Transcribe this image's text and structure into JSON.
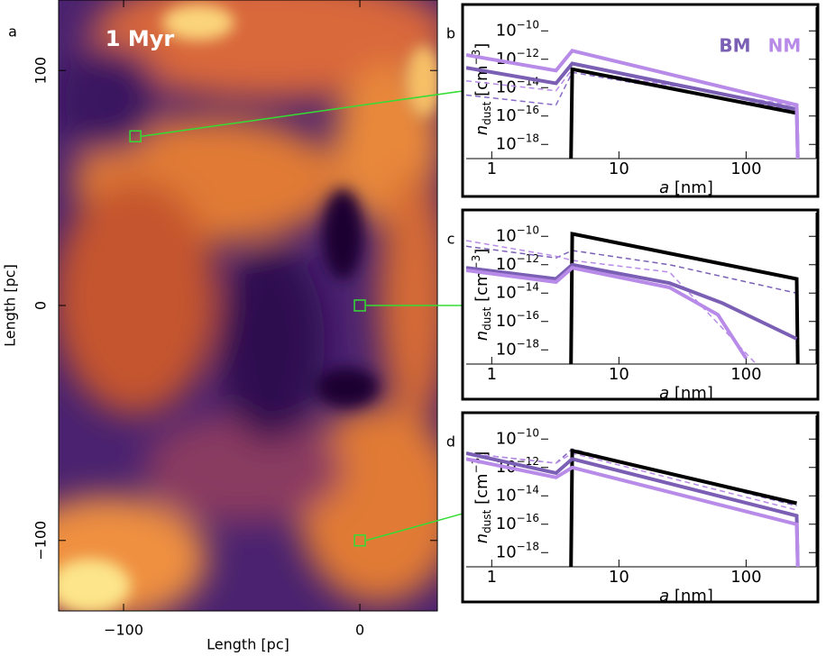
{
  "chart_data": [
    {
      "type": "image",
      "panel_label": "a",
      "annotation": "1 Myr",
      "xlabel": "Length [pc]",
      "ylabel": "Length [pc]",
      "xlim": [
        -127.5,
        32.8
      ],
      "ylim": [
        -130,
        130
      ],
      "xticks": [
        {
          "value": -100,
          "label": "−100"
        },
        0
      ],
      "yticks": [
        100,
        0,
        {
          "value": -100,
          "label": "−100"
        }
      ],
      "markers": {
        "x": [
          -95,
          0,
          0
        ],
        "y": [
          72,
          0,
          -100
        ],
        "color": "#33dd33"
      }
    },
    {
      "type": "line",
      "panel_label": "b",
      "xlabel": "a [nm]",
      "ylabel": "ndust [cm−3]",
      "log": true,
      "legend": "top-right",
      "xlim": [
        0.63,
        355
      ],
      "ylim": [
        1e-19,
        6e-10
      ],
      "xticks": [
        1,
        10,
        100
      ],
      "yticks": [
        {
          "value": 1e-10,
          "label": "10−10"
        },
        {
          "value": 1e-12,
          "label": "10−12"
        },
        {
          "value": 1e-14,
          "label": "10−14"
        },
        {
          "value": 1e-16,
          "label": "10−16"
        },
        {
          "value": 1e-18,
          "label": "10−18"
        }
      ],
      "series": [
        {
          "color": "#8a6cc8",
          "dash": true,
          "x": [
            0.63,
            3.2,
            4.3,
            250
          ],
          "values": [
            3e-15,
            6e-16,
            1.2e-13,
            2.5e-16
          ]
        },
        {
          "color": "#b88be8",
          "dash": true,
          "x": [
            0.63,
            3.2,
            4.3,
            250
          ],
          "values": [
            3e-14,
            6e-15,
            2e-13,
            5e-16
          ]
        },
        {
          "color": "#000000",
          "x": [
            4.2,
            4.3,
            250
          ],
          "values": [
            1e-19,
            2e-13,
            1.6e-16
          ]
        },
        {
          "name": "BM",
          "color": "#7a5fb5",
          "x": [
            0.63,
            3.2,
            4.3,
            250,
            255
          ],
          "values": [
            2.5e-13,
            2e-14,
            5e-13,
            3e-16,
            1e-19
          ]
        },
        {
          "name": "NM",
          "color": "#b88be8",
          "x": [
            0.63,
            3.2,
            4.3,
            250,
            255
          ],
          "values": [
            2e-12,
            1.6e-13,
            4e-12,
            6e-16,
            1e-19
          ]
        }
      ]
    },
    {
      "type": "line",
      "panel_label": "c",
      "xlabel": "a [nm]",
      "ylabel": "ndust [cm−3]",
      "log": true,
      "xlim": [
        0.63,
        355
      ],
      "ylim": [
        1e-19,
        6e-10
      ],
      "xticks": [
        1,
        10,
        100
      ],
      "yticks": [
        {
          "value": 1e-10,
          "label": "10−10"
        },
        {
          "value": 1e-12,
          "label": "10−12"
        },
        {
          "value": 1e-14,
          "label": "10−14"
        },
        {
          "value": 1e-16,
          "label": "10−16"
        },
        {
          "value": 1e-18,
          "label": "10−18"
        }
      ],
      "series": [
        {
          "color": "#7a5fb5",
          "dash": true,
          "x": [
            0.63,
            3.2,
            4.3,
            25,
            250
          ],
          "values": [
            2e-11,
            3e-12,
            1e-11,
            1e-12,
            1e-14
          ]
        },
        {
          "color": "#b88be8",
          "dash": true,
          "x": [
            0.63,
            3.2,
            4.3,
            25,
            120
          ],
          "values": [
            5e-11,
            4e-12,
            2e-12,
            3e-13,
            1e-19
          ]
        },
        {
          "color": "#000000",
          "x": [
            4.2,
            4.3,
            250,
            255
          ],
          "values": [
            1e-19,
            1.5e-10,
            1e-13,
            1e-19
          ]
        },
        {
          "color": "#7a5fb5",
          "x": [
            0.63,
            3.2,
            4.3,
            25,
            65,
            250
          ],
          "values": [
            6e-13,
            1e-13,
            1e-12,
            5e-14,
            2e-15,
            6e-18
          ]
        },
        {
          "color": "#b88be8",
          "x": [
            0.63,
            3.2,
            4.3,
            25,
            60,
            100
          ],
          "values": [
            4e-13,
            6e-14,
            6e-13,
            2.5e-14,
            3e-16,
            2.5e-19
          ]
        }
      ]
    },
    {
      "type": "line",
      "panel_label": "d",
      "xlabel": "a [nm]",
      "ylabel": "ndust [cm−3]",
      "log": true,
      "xlim": [
        0.63,
        355
      ],
      "ylim": [
        1e-19,
        6e-10
      ],
      "xticks": [
        1,
        10,
        100
      ],
      "yticks": [
        {
          "value": 1e-10,
          "label": "10−10"
        },
        {
          "value": 1e-12,
          "label": "10−12"
        },
        {
          "value": 1e-14,
          "label": "10−14"
        },
        {
          "value": 1e-16,
          "label": "10−16"
        },
        {
          "value": 1e-18,
          "label": "10−18"
        }
      ],
      "series": [
        {
          "color": "#7a5fb5",
          "dash": true,
          "x": [
            0.63,
            3.2,
            4.3,
            250
          ],
          "values": [
            1e-11,
            2e-12,
            2e-11,
            2e-15
          ]
        },
        {
          "color": "#b88be8",
          "dash": true,
          "x": [
            0.63,
            3.2,
            4.3,
            250
          ],
          "values": [
            1e-11,
            2e-12,
            1e-11,
            1e-15
          ]
        },
        {
          "color": "#000000",
          "x": [
            4.2,
            4.3,
            250
          ],
          "values": [
            1e-19,
            1.5e-11,
            3e-15
          ]
        },
        {
          "color": "#7a5fb5",
          "x": [
            0.63,
            3.2,
            4.3,
            250,
            255
          ],
          "values": [
            1e-11,
            4e-13,
            4e-12,
            4e-16,
            1e-19
          ]
        },
        {
          "color": "#b88be8",
          "x": [
            0.63,
            3.2,
            4.3,
            250,
            255
          ],
          "values": [
            4e-12,
            2e-13,
            1e-12,
            1e-16,
            1e-19
          ]
        }
      ]
    }
  ]
}
